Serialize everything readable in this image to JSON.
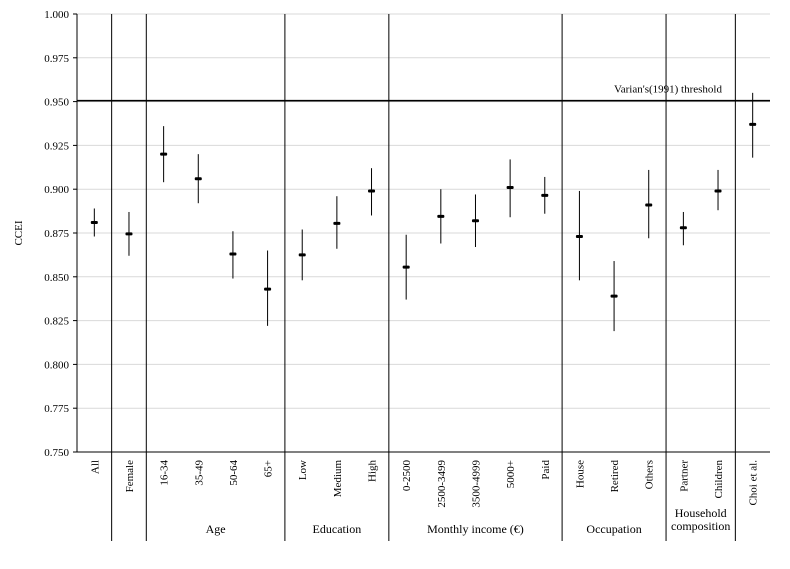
{
  "chart_data": {
    "type": "scatter",
    "title": "",
    "xlabel": "",
    "ylabel": "CCEI",
    "ylim": [
      0.75,
      1.0
    ],
    "yticks": [
      "0.750",
      "0.775",
      "0.800",
      "0.825",
      "0.850",
      "0.875",
      "0.900",
      "0.925",
      "0.950",
      "0.975",
      "1.000"
    ],
    "grid": true,
    "threshold": {
      "value": 0.9505,
      "label": "Varian's(1991) threshold"
    },
    "categories": [
      "All",
      "Female",
      "16-34",
      "35-49",
      "50-64",
      "65+",
      "Low",
      "Medium",
      "High",
      "0-2500",
      "2500-3499",
      "3500-4999",
      "5000+",
      "Paid",
      "House",
      "Retired",
      "Others",
      "Partner",
      "Children",
      "Choi et al."
    ],
    "points": [
      {
        "label": "All",
        "mean": 0.881,
        "low": 0.873,
        "high": 0.889
      },
      {
        "label": "Female",
        "mean": 0.8745,
        "low": 0.862,
        "high": 0.887
      },
      {
        "label": "16-34",
        "mean": 0.92,
        "low": 0.904,
        "high": 0.936
      },
      {
        "label": "35-49",
        "mean": 0.906,
        "low": 0.892,
        "high": 0.92
      },
      {
        "label": "50-64",
        "mean": 0.863,
        "low": 0.849,
        "high": 0.876
      },
      {
        "label": "65+",
        "mean": 0.843,
        "low": 0.822,
        "high": 0.865
      },
      {
        "label": "Low",
        "mean": 0.8625,
        "low": 0.848,
        "high": 0.877
      },
      {
        "label": "Medium",
        "mean": 0.8805,
        "low": 0.866,
        "high": 0.896
      },
      {
        "label": "High",
        "mean": 0.899,
        "low": 0.885,
        "high": 0.912
      },
      {
        "label": "0-2500",
        "mean": 0.8555,
        "low": 0.837,
        "high": 0.874
      },
      {
        "label": "2500-3499",
        "mean": 0.8845,
        "low": 0.869,
        "high": 0.9
      },
      {
        "label": "3500-4999",
        "mean": 0.882,
        "low": 0.867,
        "high": 0.897
      },
      {
        "label": "5000+",
        "mean": 0.901,
        "low": 0.884,
        "high": 0.917
      },
      {
        "label": "Paid",
        "mean": 0.8965,
        "low": 0.886,
        "high": 0.907
      },
      {
        "label": "House",
        "mean": 0.873,
        "low": 0.848,
        "high": 0.899
      },
      {
        "label": "Retired",
        "mean": 0.839,
        "low": 0.819,
        "high": 0.859
      },
      {
        "label": "Others",
        "mean": 0.891,
        "low": 0.872,
        "high": 0.911
      },
      {
        "label": "Partner",
        "mean": 0.878,
        "low": 0.868,
        "high": 0.887
      },
      {
        "label": "Children",
        "mean": 0.899,
        "low": 0.888,
        "high": 0.911
      },
      {
        "label": "Choi et al.",
        "mean": 0.937,
        "low": 0.918,
        "high": 0.955
      }
    ],
    "groups": [
      {
        "label": "Age",
        "lines": [
          "Age"
        ],
        "from": 2,
        "to": 5
      },
      {
        "label": "Education",
        "lines": [
          "Education"
        ],
        "from": 6,
        "to": 8
      },
      {
        "label": "Monthly income (€)",
        "lines": [
          "Monthly income (€)"
        ],
        "from": 9,
        "to": 13
      },
      {
        "label": "Occupation",
        "lines": [
          "Occupation"
        ],
        "from": 14,
        "to": 16
      },
      {
        "label": "Household composition",
        "lines": [
          "Household",
          "composition"
        ],
        "from": 17,
        "to": 18
      }
    ],
    "separators_after": [
      0,
      1,
      5,
      8,
      13,
      16,
      18
    ]
  }
}
